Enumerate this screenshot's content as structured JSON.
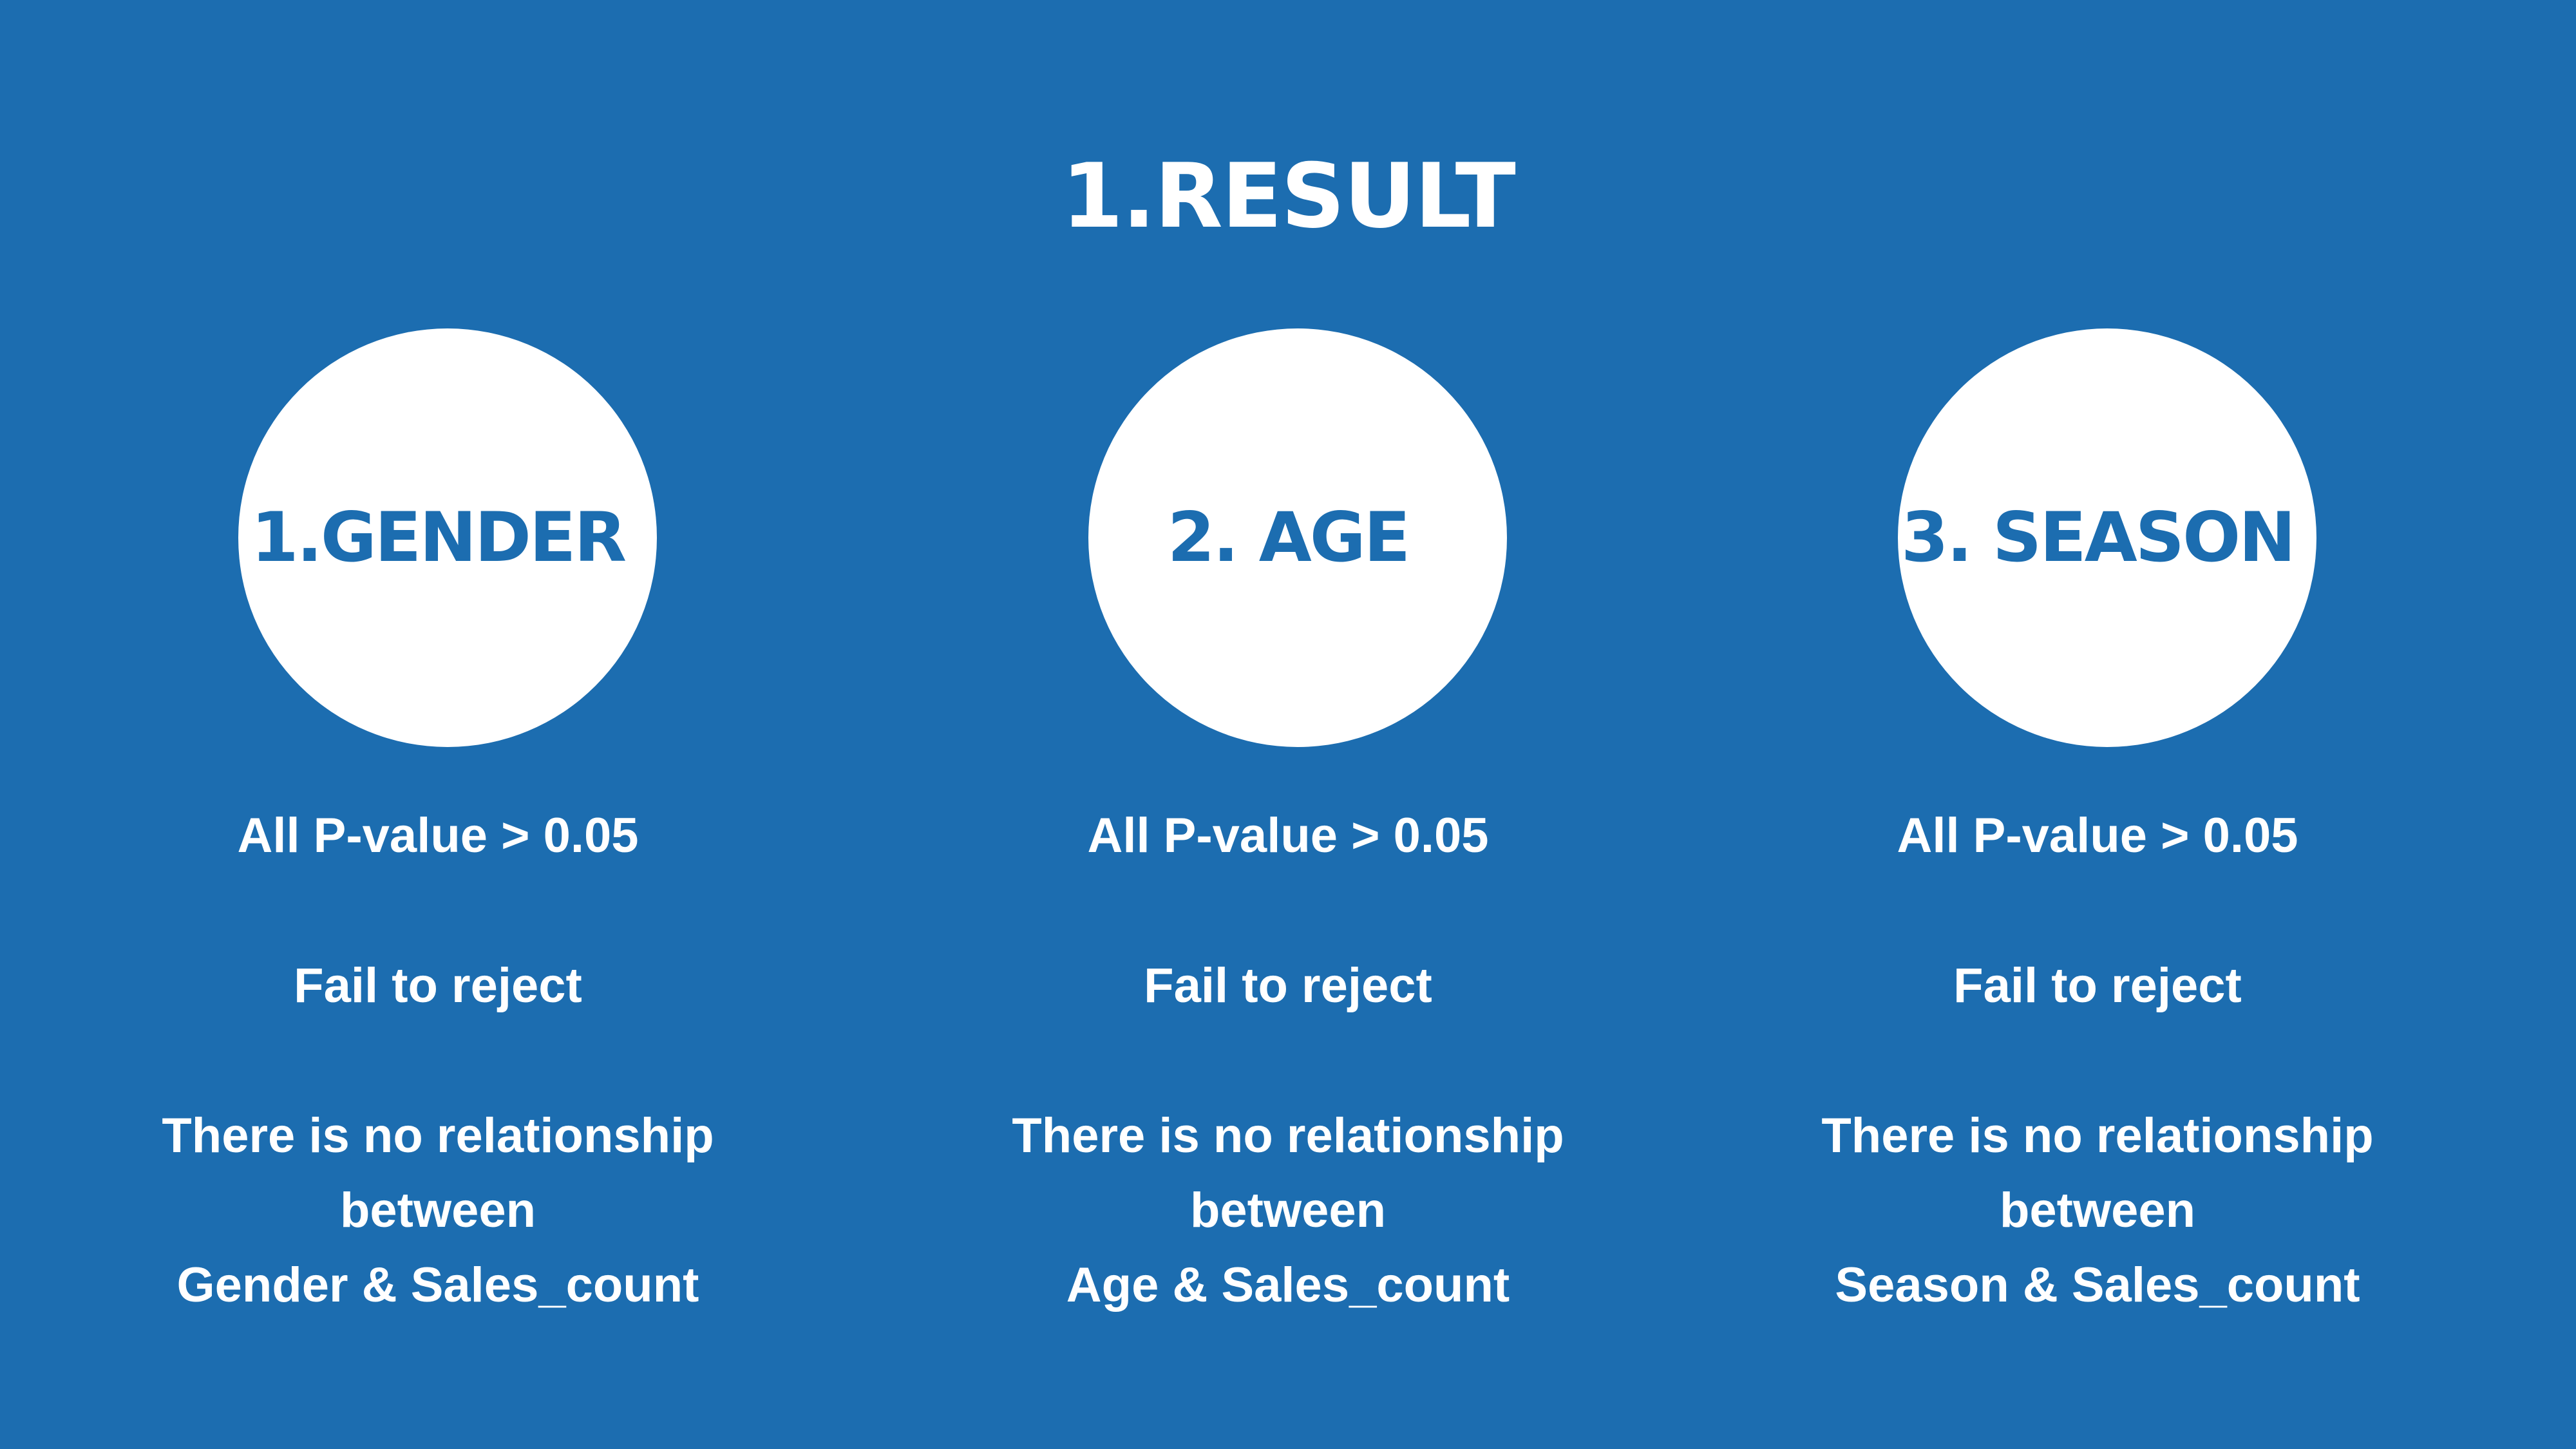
{
  "slide": {
    "title": "1.RESULT",
    "background_color": "#1c6db0",
    "accent_color": "#ffffff",
    "columns": [
      {
        "circle_label": "1.GENDER",
        "pvalue_text": "All P-value > 0.05",
        "decision_text": "Fail to reject",
        "conclusion_line1": "There is no relationship",
        "conclusion_line2": "between",
        "conclusion_line3": "Gender & Sales_count"
      },
      {
        "circle_label": "2. AGE",
        "pvalue_text": "All P-value > 0.05",
        "decision_text": "Fail to reject",
        "conclusion_line1": "There is no relationship",
        "conclusion_line2": "between",
        "conclusion_line3": "Age & Sales_count"
      },
      {
        "circle_label": "3. SEASON",
        "pvalue_text": "All P-value > 0.05",
        "decision_text": "Fail to reject",
        "conclusion_line1": "There is no relationship",
        "conclusion_line2": "between",
        "conclusion_line3": "Season & Sales_count"
      }
    ]
  }
}
